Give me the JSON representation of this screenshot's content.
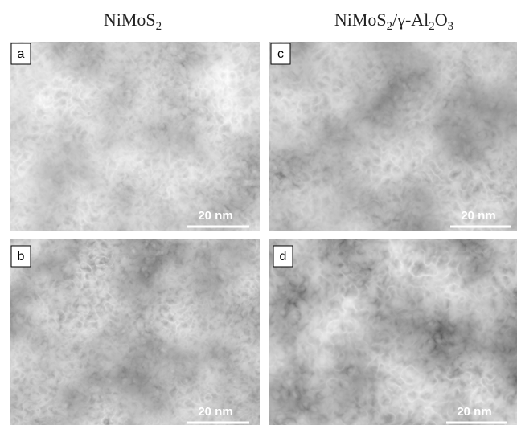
{
  "columns": [
    {
      "title": [
        "NiMoS",
        "2"
      ]
    },
    {
      "title": [
        "NiMoS",
        "2",
        "/γ-Al",
        "2",
        "O",
        "3"
      ]
    }
  ],
  "panels": [
    {
      "label": "a",
      "scale": "20 nm"
    },
    {
      "label": "b",
      "scale": "20 nm"
    },
    {
      "label": "c",
      "scale": "20 nm"
    },
    {
      "label": "d",
      "scale": "20 nm"
    }
  ]
}
